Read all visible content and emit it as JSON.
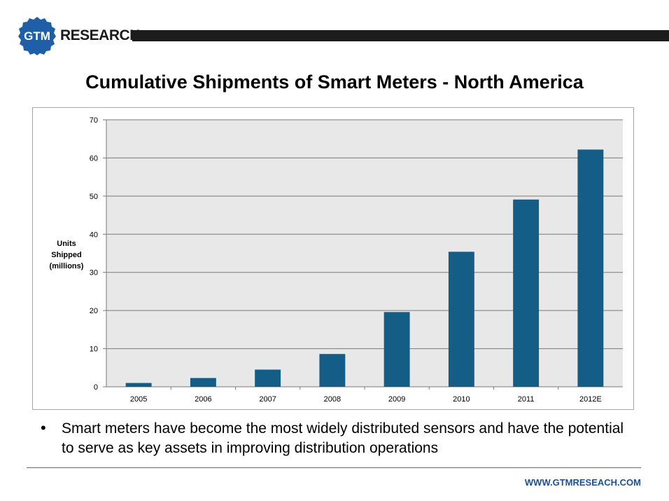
{
  "header": {
    "logo_badge_text": "GTM",
    "logo_word": "RESEARCH",
    "brand_color": "#1f5fa8",
    "bar_color": "#1c1c1c"
  },
  "title": "Cumulative Shipments of Smart Meters - North America",
  "bullet": {
    "symbol": "•",
    "text": "Smart meters have become the most widely distributed sensors and have the potential to serve as key assets in improving distribution operations"
  },
  "footer": {
    "url": "WWW.GTMRESEACH.COM"
  },
  "chart_data": {
    "type": "bar",
    "title": "",
    "xlabel": "",
    "ylabel": "Units\nShipped\n(millions)",
    "categories": [
      "2005",
      "2006",
      "2007",
      "2008",
      "2009",
      "2010",
      "2011",
      "2012E"
    ],
    "values": [
      1,
      2.3,
      4.5,
      8.6,
      19.6,
      35.4,
      49.1,
      62.2
    ],
    "ylim": [
      0,
      70
    ],
    "yticks": [
      0,
      10,
      20,
      30,
      40,
      50,
      60,
      70
    ],
    "grid": true,
    "bar_color": "#145d86",
    "plot_background": "#e8e8e8",
    "legend": "none"
  }
}
